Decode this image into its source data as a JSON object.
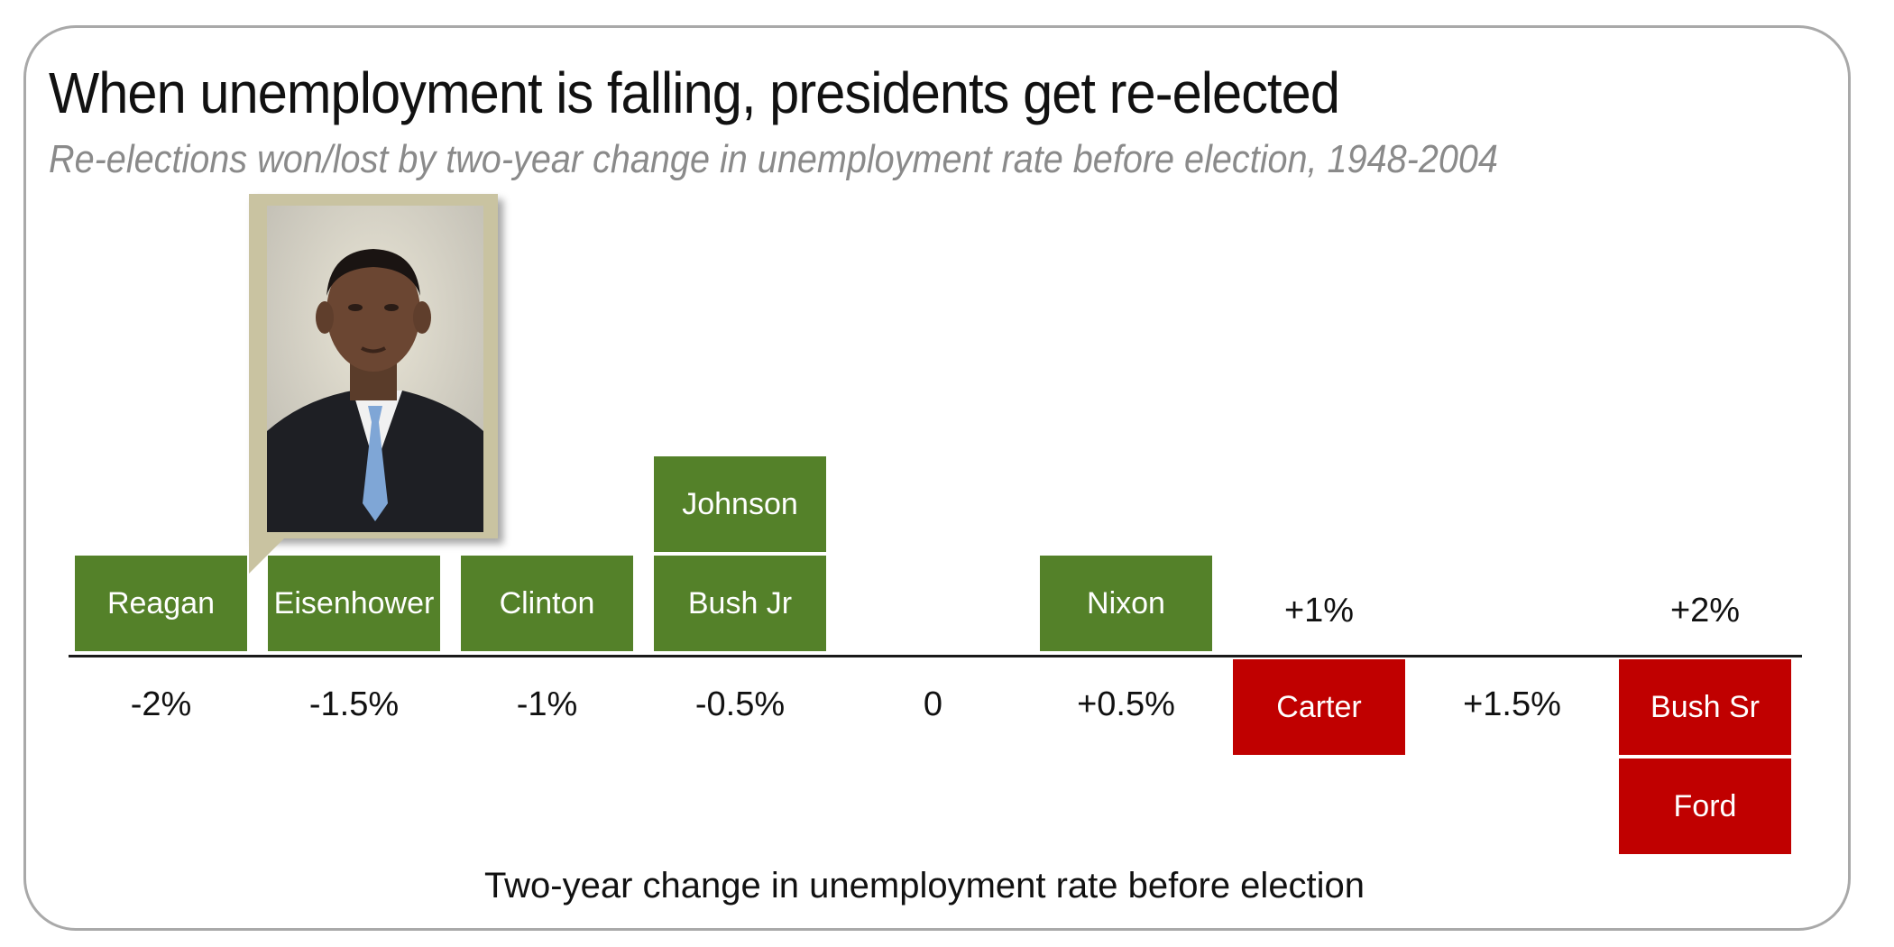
{
  "header": {
    "title": "When unemployment is falling, presidents get re-elected",
    "subtitle": "Re-elections won/lost by two-year change in unemployment rate before election, 1948-2004"
  },
  "colors": {
    "won": "#548129",
    "lost": "#c00000",
    "axis": "#1a1a1a",
    "photo_frame": "#c9c3a1"
  },
  "chart_data": {
    "type": "table",
    "title": "When unemployment is falling, presidents get re-elected",
    "subtitle": "Re-elections won/lost by two-year change in unemployment rate before election, 1948-2004",
    "xlabel": "Two-year change in unemployment rate before election",
    "ylabel": "",
    "categories": [
      "-2%",
      "-1.5%",
      "-1%",
      "-0.5%",
      "0",
      "+0.5%",
      "+1%",
      "+1.5%",
      "+2%"
    ],
    "x": [
      -2,
      -1.5,
      -1,
      -0.5,
      0,
      0.5,
      1,
      1.5,
      2
    ],
    "series": [
      {
        "name": "",
        "outcome": "won",
        "points": [
          {
            "x": -2,
            "label": "Reagan"
          },
          {
            "x": -1.5,
            "label": "Eisenhower"
          },
          {
            "x": -1,
            "label": "Clinton"
          },
          {
            "x": -0.5,
            "label": "Bush Jr"
          },
          {
            "x": -0.5,
            "label": "Johnson"
          },
          {
            "x": 0.5,
            "label": "Nixon"
          }
        ]
      },
      {
        "name": "",
        "outcome": "lost",
        "points": [
          {
            "x": 1,
            "label": "Carter"
          },
          {
            "x": 2,
            "label": "Bush Sr"
          },
          {
            "x": 2,
            "label": "Ford"
          }
        ]
      }
    ],
    "annotation": {
      "type": "photo",
      "x": -1.5,
      "subject": "portrait-photo"
    }
  }
}
